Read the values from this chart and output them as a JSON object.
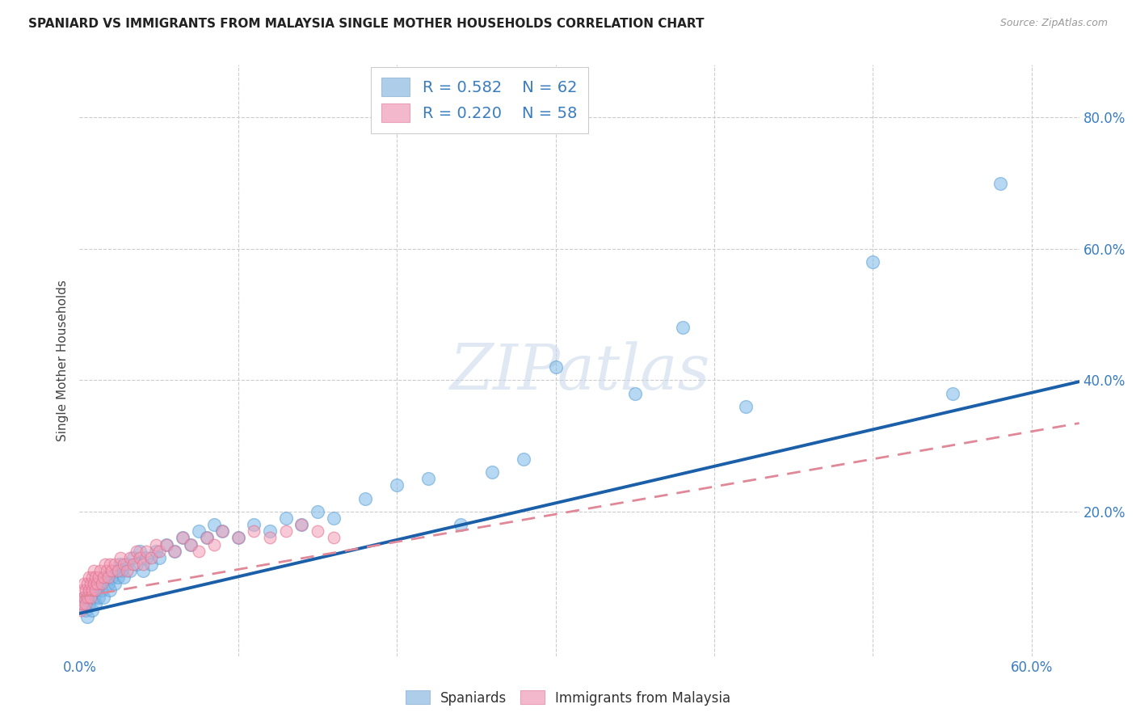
{
  "title": "SPANIARD VS IMMIGRANTS FROM MALAYSIA SINGLE MOTHER HOUSEHOLDS CORRELATION CHART",
  "source": "Source: ZipAtlas.com",
  "ylabel": "Single Mother Households",
  "xlim": [
    0.0,
    0.63
  ],
  "ylim": [
    -0.02,
    0.88
  ],
  "background_color": "#ffffff",
  "blue_color": "#7db8e8",
  "blue_edge_color": "#5a9fd4",
  "pink_color": "#f4a0b8",
  "pink_edge_color": "#e07090",
  "blue_line_color": "#1a5fa8",
  "pink_line_color": "#e08898",
  "grid_color": "#cccccc",
  "tick_color": "#3a7dbf",
  "legend_R_blue": "0.582",
  "legend_N_blue": "62",
  "legend_R_pink": "0.220",
  "legend_N_pink": "58",
  "watermark": "ZIPatlas",
  "right_ytick_vals": [
    0.0,
    0.2,
    0.4,
    0.6,
    0.8
  ],
  "right_ytick_labels": [
    "",
    "20.0%",
    "40.0%",
    "60.0%",
    "80.0%"
  ],
  "xtick_vals": [
    0.0,
    0.6
  ],
  "xtick_labels": [
    "0.0%",
    "60.0%"
  ],
  "blue_intercept": 0.045,
  "blue_slope": 0.56,
  "pink_intercept": 0.07,
  "pink_slope": 0.42,
  "sp_x": [
    0.002,
    0.003,
    0.004,
    0.005,
    0.006,
    0.007,
    0.008,
    0.009,
    0.01,
    0.011,
    0.012,
    0.013,
    0.014,
    0.015,
    0.016,
    0.018,
    0.019,
    0.02,
    0.022,
    0.023,
    0.024,
    0.025,
    0.027,
    0.028,
    0.03,
    0.032,
    0.034,
    0.036,
    0.038,
    0.04,
    0.042,
    0.045,
    0.048,
    0.05,
    0.055,
    0.06,
    0.065,
    0.07,
    0.075,
    0.08,
    0.085,
    0.09,
    0.1,
    0.11,
    0.12,
    0.13,
    0.14,
    0.15,
    0.16,
    0.18,
    0.2,
    0.22,
    0.24,
    0.26,
    0.28,
    0.3,
    0.35,
    0.38,
    0.42,
    0.5,
    0.55,
    0.58
  ],
  "sp_y": [
    0.06,
    0.07,
    0.05,
    0.04,
    0.06,
    0.08,
    0.05,
    0.07,
    0.06,
    0.08,
    0.07,
    0.09,
    0.08,
    0.07,
    0.1,
    0.09,
    0.08,
    0.1,
    0.09,
    0.11,
    0.1,
    0.12,
    0.11,
    0.1,
    0.12,
    0.11,
    0.13,
    0.12,
    0.14,
    0.11,
    0.13,
    0.12,
    0.14,
    0.13,
    0.15,
    0.14,
    0.16,
    0.15,
    0.17,
    0.16,
    0.18,
    0.17,
    0.16,
    0.18,
    0.17,
    0.19,
    0.18,
    0.2,
    0.19,
    0.22,
    0.24,
    0.25,
    0.18,
    0.26,
    0.28,
    0.42,
    0.38,
    0.48,
    0.36,
    0.58,
    0.38,
    0.7
  ],
  "ml_x": [
    0.001,
    0.002,
    0.002,
    0.003,
    0.003,
    0.004,
    0.004,
    0.005,
    0.005,
    0.006,
    0.006,
    0.007,
    0.007,
    0.008,
    0.008,
    0.009,
    0.009,
    0.01,
    0.01,
    0.011,
    0.012,
    0.013,
    0.014,
    0.015,
    0.016,
    0.017,
    0.018,
    0.019,
    0.02,
    0.022,
    0.024,
    0.026,
    0.028,
    0.03,
    0.032,
    0.034,
    0.036,
    0.038,
    0.04,
    0.042,
    0.045,
    0.048,
    0.05,
    0.055,
    0.06,
    0.065,
    0.07,
    0.075,
    0.08,
    0.085,
    0.09,
    0.1,
    0.11,
    0.12,
    0.13,
    0.14,
    0.15,
    0.16
  ],
  "ml_y": [
    0.05,
    0.06,
    0.08,
    0.07,
    0.09,
    0.06,
    0.08,
    0.07,
    0.09,
    0.08,
    0.1,
    0.07,
    0.09,
    0.08,
    0.1,
    0.09,
    0.11,
    0.08,
    0.1,
    0.09,
    0.1,
    0.11,
    0.09,
    0.1,
    0.12,
    0.11,
    0.1,
    0.12,
    0.11,
    0.12,
    0.11,
    0.13,
    0.12,
    0.11,
    0.13,
    0.12,
    0.14,
    0.13,
    0.12,
    0.14,
    0.13,
    0.15,
    0.14,
    0.15,
    0.14,
    0.16,
    0.15,
    0.14,
    0.16,
    0.15,
    0.17,
    0.16,
    0.17,
    0.16,
    0.17,
    0.18,
    0.17,
    0.16
  ]
}
